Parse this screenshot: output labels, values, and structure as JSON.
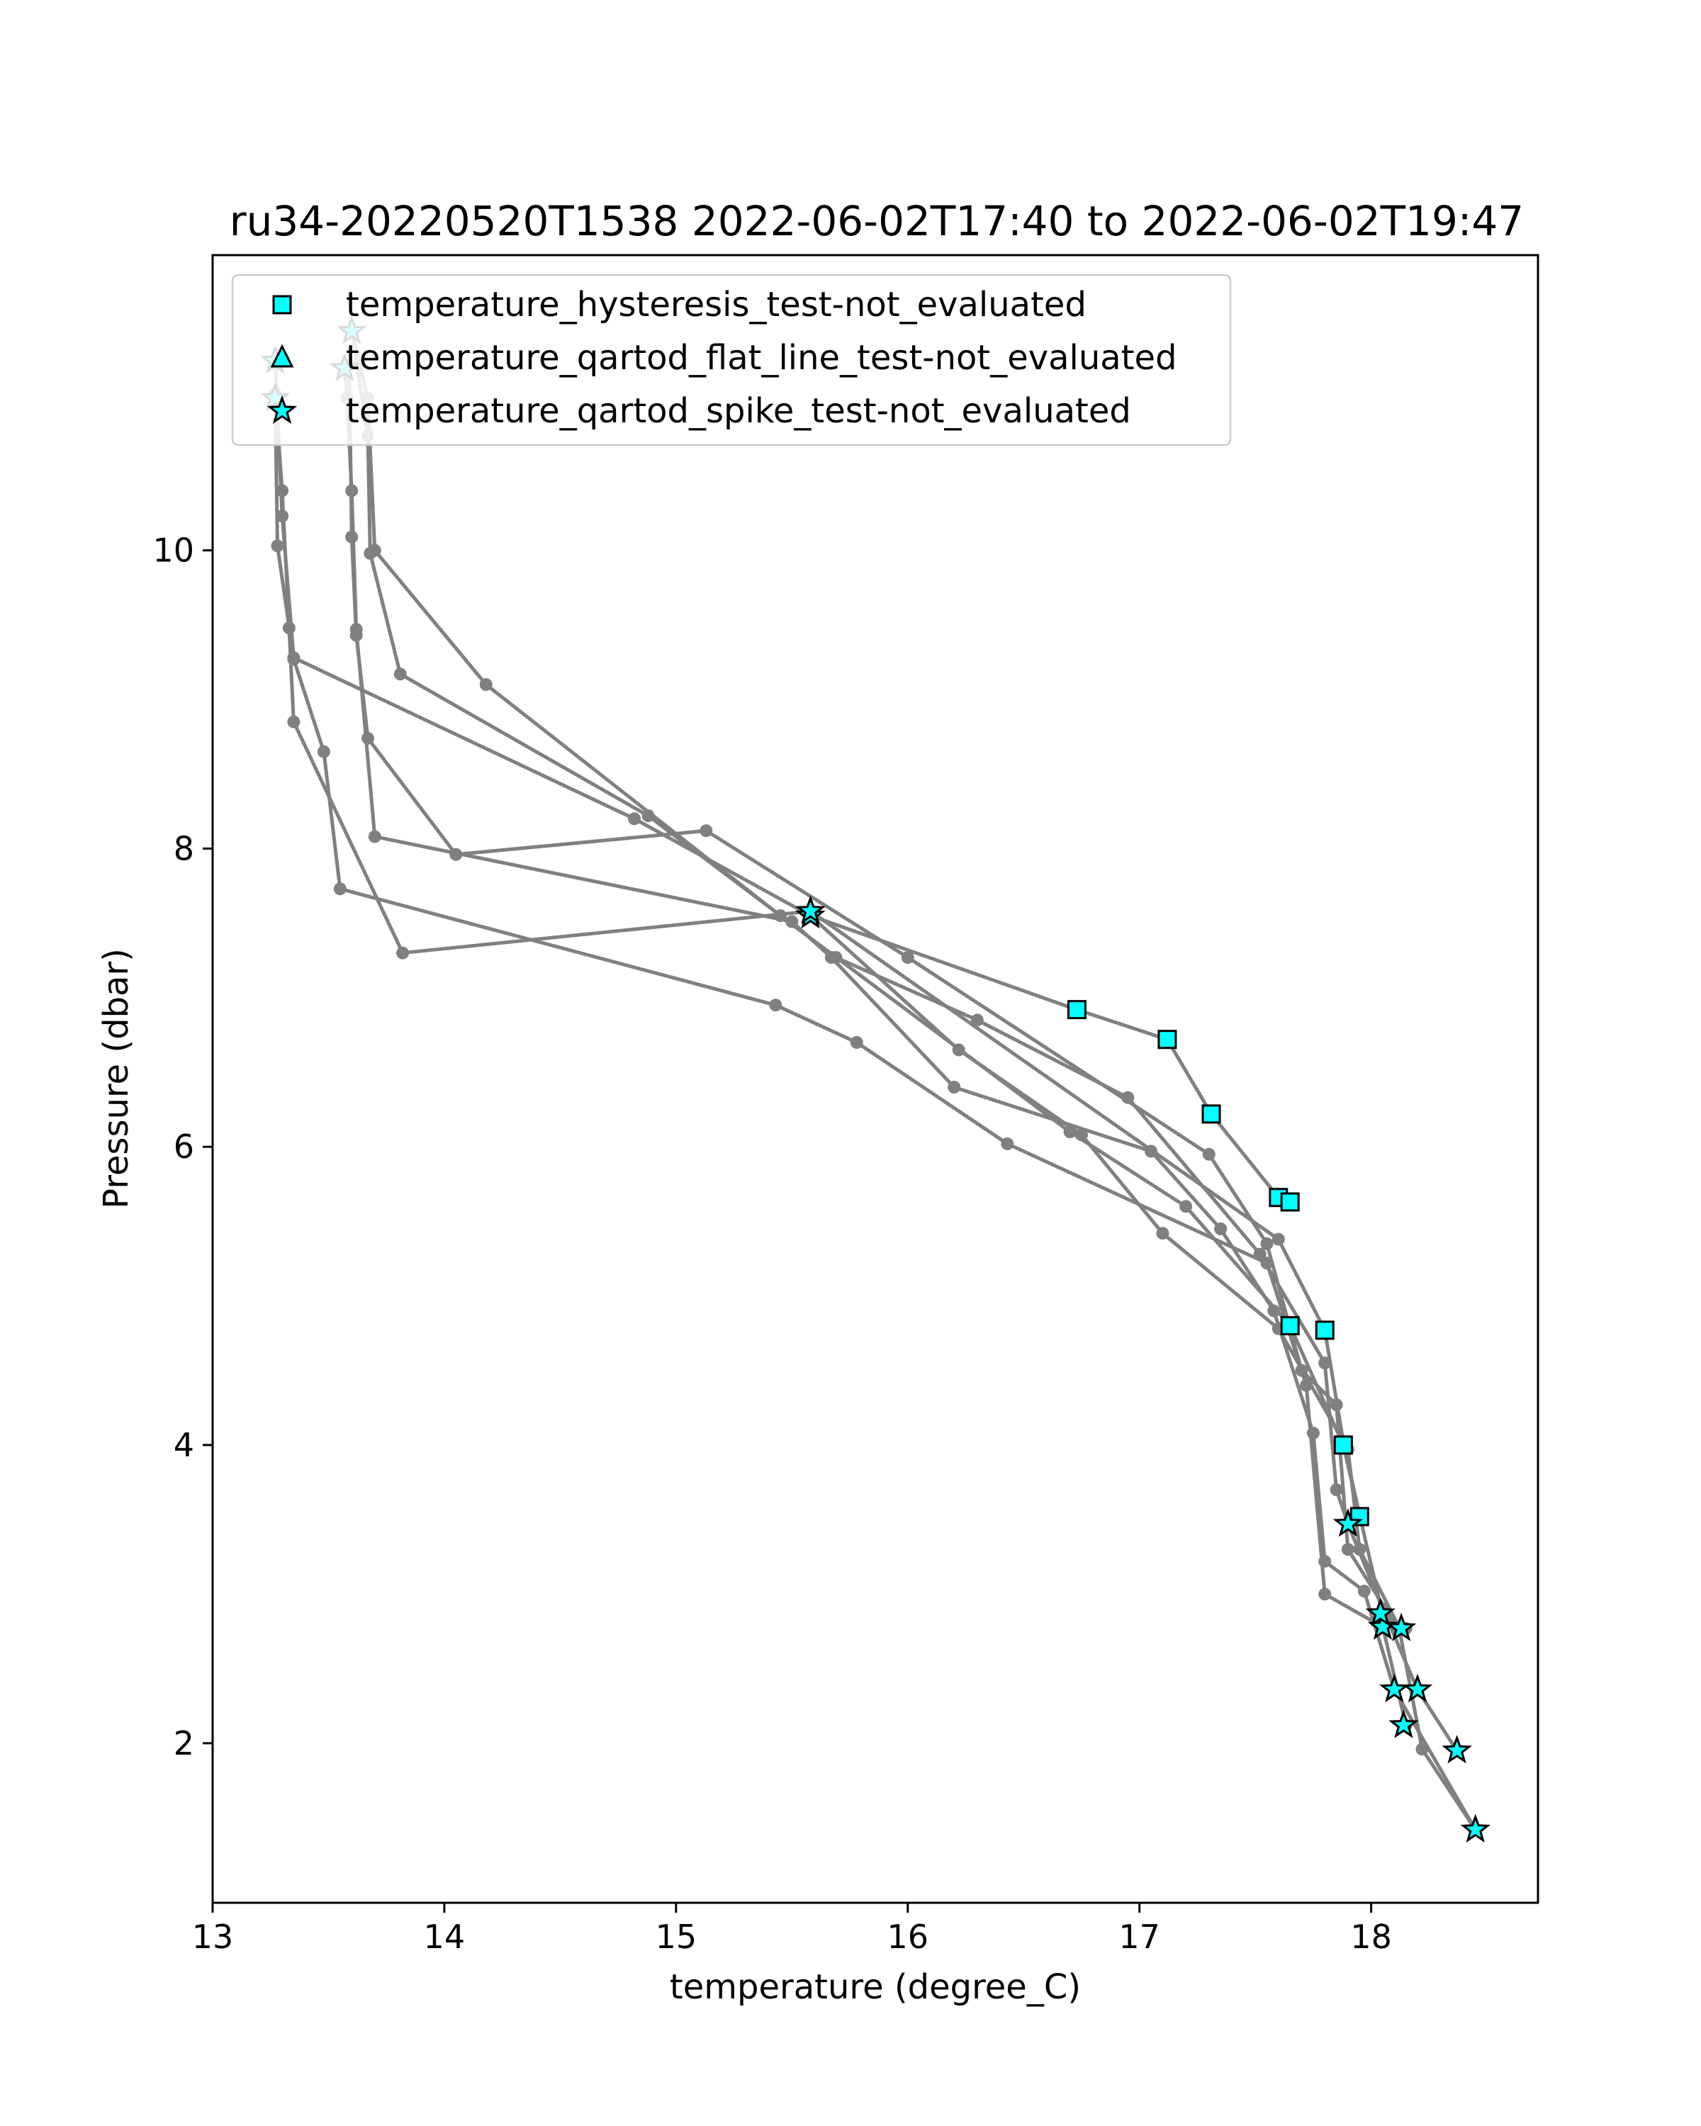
{
  "chart_data": {
    "type": "scatter",
    "title": "ru34-20220520T1538 2022-06-02T17:40 to 2022-06-02T19:47",
    "xlabel": "temperature (degree_C)",
    "ylabel": "Pressure (dbar)",
    "xlim": [
      13.0,
      18.72
    ],
    "ylim": [
      11.98,
      0.93
    ],
    "y_inverted": true,
    "x_ticks": [
      13,
      14,
      15,
      16,
      17,
      18
    ],
    "y_ticks": [
      2,
      4,
      6,
      8,
      10
    ],
    "grid": false,
    "legend_position": "top-left",
    "colors": {
      "profile_line": "#808080",
      "profile_marker": "#808080",
      "flag_fill": "#00ffff",
      "flag_edge": "#000000"
    },
    "legend": [
      {
        "label": "temperature_hysteresis_test-not_evaluated",
        "marker": "square"
      },
      {
        "label": "temperature_qartod_flat_line_test-not_evaluated",
        "marker": "triangle"
      },
      {
        "label": "temperature_qartod_spike_test-not_evaluated",
        "marker": "star"
      }
    ],
    "profiles": [
      {
        "points": [
          [
            18.45,
            1.42
          ],
          [
            18.22,
            1.96
          ],
          [
            18.12,
            2.78
          ],
          [
            17.95,
            3.3
          ],
          [
            17.9,
            3.97
          ],
          [
            17.6,
            4.78
          ],
          [
            17.1,
            5.42
          ],
          [
            16.75,
            6.08
          ],
          [
            16.22,
            6.65
          ],
          [
            15.58,
            7.55
          ],
          [
            14.82,
            8.2
          ],
          [
            13.35,
            9.28
          ],
          [
            13.3,
            10.23
          ],
          [
            13.27,
            11.27
          ]
        ]
      },
      {
        "points": [
          [
            18.37,
            1.95
          ],
          [
            18.2,
            2.36
          ],
          [
            18.05,
            2.9
          ],
          [
            17.9,
            3.47
          ],
          [
            17.85,
            3.7
          ],
          [
            17.8,
            4.55
          ],
          [
            17.52,
            5.28
          ],
          [
            16.95,
            6.33
          ],
          [
            16.3,
            6.85
          ],
          [
            15.69,
            7.27
          ],
          [
            14.88,
            8.22
          ],
          [
            13.81,
            9.17
          ],
          [
            13.68,
            9.98
          ],
          [
            13.67,
            10.77
          ],
          [
            13.6,
            11.47
          ]
        ]
      },
      {
        "points": [
          [
            18.15,
            2.12
          ],
          [
            18.05,
            2.78
          ],
          [
            17.8,
            3.0
          ],
          [
            17.72,
            4.4
          ],
          [
            17.55,
            5.22
          ],
          [
            16.43,
            6.02
          ],
          [
            15.78,
            6.7
          ],
          [
            15.43,
            6.95
          ],
          [
            13.55,
            7.73
          ],
          [
            13.48,
            8.65
          ],
          [
            13.35,
            9.27
          ],
          [
            13.28,
            10.03
          ],
          [
            13.27,
            11.02
          ]
        ]
      },
      {
        "points": [
          [
            18.45,
            1.42
          ],
          [
            18.1,
            2.36
          ],
          [
            17.97,
            3.02
          ],
          [
            17.8,
            3.22
          ],
          [
            17.75,
            4.08
          ],
          [
            17.58,
            4.9
          ],
          [
            17.35,
            5.45
          ],
          [
            17.05,
            5.97
          ],
          [
            16.2,
            6.4
          ],
          [
            15.67,
            7.27
          ],
          [
            15.5,
            7.51
          ],
          [
            13.7,
            8.08
          ],
          [
            13.62,
            9.47
          ],
          [
            13.6,
            10.4
          ],
          [
            13.58,
            11.02
          ],
          [
            13.57,
            11.22
          ]
        ]
      },
      {
        "points": [
          [
            18.15,
            2.77
          ],
          [
            18.05,
            2.86
          ],
          [
            17.95,
            3.53
          ],
          [
            17.88,
            4.02
          ],
          [
            17.8,
            4.77
          ],
          [
            17.6,
            5.38
          ],
          [
            15.58,
            7.58
          ],
          [
            13.82,
            7.3
          ],
          [
            13.35,
            8.85
          ],
          [
            13.33,
            9.48
          ],
          [
            13.3,
            10.4
          ],
          [
            13.27,
            11.05
          ]
        ]
      },
      {
        "points": [
          [
            18.12,
            2.76
          ],
          [
            17.9,
            3.3
          ],
          [
            17.85,
            4.27
          ],
          [
            17.7,
            4.5
          ],
          [
            17.55,
            5.35
          ],
          [
            17.3,
            5.95
          ],
          [
            16.0,
            7.27
          ],
          [
            15.13,
            8.12
          ],
          [
            14.05,
            7.96
          ],
          [
            13.67,
            8.74
          ],
          [
            13.62,
            9.43
          ],
          [
            13.6,
            10.09
          ],
          [
            13.59,
            11.24
          ]
        ]
      },
      {
        "points": [
          [
            17.95,
            3.52
          ],
          [
            17.88,
            4.0
          ],
          [
            17.65,
            4.8
          ],
          [
            17.2,
            5.6
          ],
          [
            16.7,
            6.1
          ],
          [
            15.45,
            7.55
          ],
          [
            14.18,
            9.1
          ],
          [
            13.7,
            10.0
          ],
          [
            13.67,
            11.02
          ],
          [
            13.6,
            11.47
          ]
        ]
      },
      {
        "points": [
          [
            17.65,
            5.63
          ],
          [
            17.6,
            5.66
          ],
          [
            17.31,
            6.22
          ],
          [
            17.12,
            6.72
          ],
          [
            16.73,
            6.92
          ],
          [
            15.58,
            7.55
          ]
        ]
      }
    ],
    "hysteresis_not_evaluated": [
      [
        17.95,
        3.52
      ],
      [
        17.88,
        4.0
      ],
      [
        17.65,
        4.8
      ],
      [
        17.8,
        4.77
      ],
      [
        17.6,
        5.66
      ],
      [
        17.65,
        5.63
      ],
      [
        17.31,
        6.22
      ],
      [
        17.12,
        6.72
      ],
      [
        16.73,
        6.92
      ]
    ],
    "flat_line_not_evaluated": [],
    "spike_not_evaluated": [
      [
        18.45,
        1.42
      ],
      [
        18.37,
        1.95
      ],
      [
        18.14,
        2.12
      ],
      [
        18.1,
        2.36
      ],
      [
        18.2,
        2.36
      ],
      [
        18.05,
        2.78
      ],
      [
        18.04,
        2.87
      ],
      [
        18.13,
        2.77
      ],
      [
        17.9,
        3.47
      ],
      [
        15.58,
        7.55
      ],
      [
        15.58,
        7.58
      ],
      [
        13.27,
        11.02
      ],
      [
        13.27,
        11.27
      ],
      [
        13.57,
        11.22
      ],
      [
        13.6,
        11.47
      ]
    ]
  }
}
